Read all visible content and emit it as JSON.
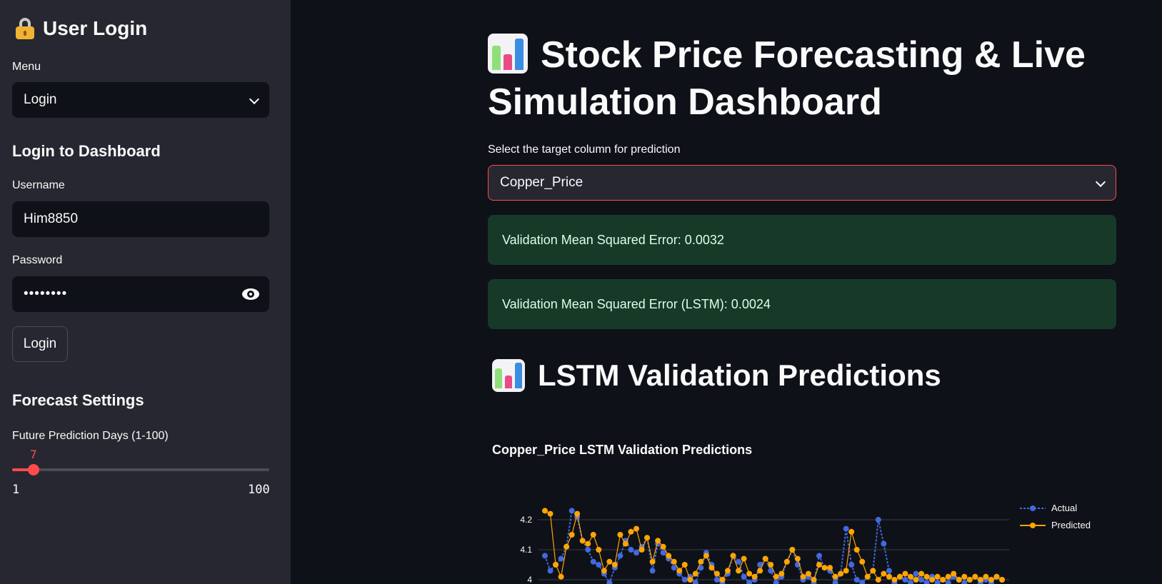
{
  "sidebar": {
    "title": "User Login",
    "menu_label": "Menu",
    "menu_value": "Login",
    "login_heading": "Login to Dashboard",
    "username_label": "Username",
    "username_value": "Him8850",
    "password_label": "Password",
    "password_value": "••••••••",
    "login_button": "Login",
    "forecast_heading": "Forecast Settings",
    "slider_label": "Future Prediction Days (1-100)",
    "slider_value": 7,
    "slider_min": 1,
    "slider_max": 100
  },
  "main": {
    "title": "Stock Price Forecasting & Live Simulation Dashboard",
    "select_label": "Select the target column for prediction",
    "select_value": "Copper_Price",
    "alert_mse": "Validation Mean Squared Error: 0.0032",
    "alert_lstm": "Validation Mean Squared Error (LSTM): 0.0024",
    "section_heading": "LSTM Validation Predictions"
  },
  "colors": {
    "accent": "#ff4b4b",
    "actual": "#4169e1",
    "predicted": "#ffa500",
    "success_bg": "#173928"
  },
  "chart_data": {
    "type": "line",
    "title": "Copper_Price LSTM Validation Predictions",
    "ylim_visible": [
      3.98,
      4.24
    ],
    "yticks": [
      "4.2",
      "4.1",
      "4"
    ],
    "legend": "top-right",
    "series": [
      {
        "name": "Actual",
        "style": "dashed-with-markers",
        "x": [
          0,
          1,
          2,
          3,
          4,
          5,
          6,
          7,
          8,
          9,
          10,
          11,
          12,
          13,
          14,
          15,
          16,
          17,
          18,
          19,
          20,
          21,
          22,
          23,
          24,
          25,
          26,
          27,
          28,
          29,
          30,
          31,
          32,
          33,
          34,
          35,
          36,
          37,
          38,
          39,
          40,
          41,
          42,
          43,
          44,
          45,
          46,
          47,
          48,
          49,
          50,
          51,
          52,
          53,
          54,
          55,
          56,
          57,
          58,
          59,
          60,
          61,
          62,
          63,
          64,
          65,
          66,
          67,
          68,
          69,
          70,
          71,
          72,
          73,
          74,
          75,
          76,
          77,
          78,
          79,
          80,
          81,
          82,
          83,
          84,
          85
        ],
        "values": [
          4.08,
          4.03,
          4.05,
          4.07,
          4.11,
          4.23,
          4.21,
          4.13,
          4.1,
          4.06,
          4.05,
          4.02,
          3.99,
          4.04,
          4.08,
          4.13,
          4.1,
          4.09,
          4.11,
          4.14,
          4.03,
          4.12,
          4.09,
          4.07,
          4.04,
          4.02,
          4.0,
          4.01,
          3.99,
          4.04,
          4.09,
          4.05,
          4.0,
          3.99,
          4.02,
          4.08,
          4.06,
          4.01,
          3.99,
          4.0,
          4.05,
          4.07,
          4.03,
          3.99,
          4.01,
          4.06,
          4.1,
          4.05,
          4.0,
          4.01,
          3.99,
          4.08,
          4.04,
          4.03,
          3.99,
          4.02,
          4.17,
          4.05,
          4.0,
          3.99,
          4.01,
          4.03,
          4.2,
          4.12,
          4.03,
          3.99,
          4.01,
          4.0,
          3.99,
          4.02,
          4.0,
          3.99,
          4.01,
          3.99,
          4.0,
          3.99,
          4.01,
          4.0,
          3.99,
          4.0,
          4.01,
          3.99,
          4.0,
          3.99,
          4.01,
          4.0
        ]
      },
      {
        "name": "Predicted",
        "style": "solid-with-markers",
        "x": [
          0,
          1,
          2,
          3,
          4,
          5,
          6,
          7,
          8,
          9,
          10,
          11,
          12,
          13,
          14,
          15,
          16,
          17,
          18,
          19,
          20,
          21,
          22,
          23,
          24,
          25,
          26,
          27,
          28,
          29,
          30,
          31,
          32,
          33,
          34,
          35,
          36,
          37,
          38,
          39,
          40,
          41,
          42,
          43,
          44,
          45,
          46,
          47,
          48,
          49,
          50,
          51,
          52,
          53,
          54,
          55,
          56,
          57,
          58,
          59,
          60,
          61,
          62,
          63,
          64,
          65,
          66,
          67,
          68,
          69,
          70,
          71,
          72,
          73,
          74,
          75,
          76,
          77,
          78,
          79,
          80,
          81,
          82,
          83,
          84,
          85
        ],
        "values": [
          4.23,
          4.22,
          4.05,
          4.01,
          4.11,
          4.15,
          4.22,
          4.13,
          4.12,
          4.15,
          4.1,
          4.03,
          4.06,
          4.05,
          4.15,
          4.12,
          4.16,
          4.17,
          4.1,
          4.14,
          4.06,
          4.13,
          4.11,
          4.08,
          4.06,
          4.03,
          4.05,
          4.0,
          4.02,
          4.06,
          4.08,
          4.04,
          4.02,
          4.0,
          4.03,
          4.08,
          4.03,
          4.07,
          4.02,
          4.01,
          4.03,
          4.07,
          4.05,
          4.01,
          4.02,
          4.06,
          4.1,
          4.07,
          4.01,
          4.02,
          4.0,
          4.05,
          4.04,
          4.04,
          4.01,
          4.02,
          4.03,
          4.16,
          4.1,
          4.06,
          4.01,
          4.03,
          4.0,
          4.02,
          4.01,
          4.0,
          4.01,
          4.02,
          4.01,
          4.0,
          4.02,
          4.01,
          4.0,
          4.01,
          4.0,
          4.01,
          4.02,
          4.0,
          4.01,
          4.0,
          4.01,
          4.0,
          4.01,
          4.0,
          4.01,
          4.0
        ]
      }
    ]
  }
}
